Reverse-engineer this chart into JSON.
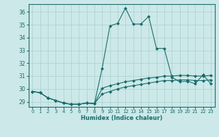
{
  "title": "",
  "xlabel": "Humidex (Indice chaleur)",
  "bg_color": "#cce8e8",
  "line_color": "#1a6b6b",
  "grid_color": "#aacfcf",
  "xlim": [
    -0.5,
    23.5
  ],
  "ylim": [
    28.6,
    36.6
  ],
  "yticks": [
    29,
    30,
    31,
    32,
    33,
    34,
    35,
    36
  ],
  "xticks": [
    0,
    1,
    2,
    3,
    4,
    5,
    6,
    7,
    8,
    9,
    10,
    11,
    12,
    13,
    14,
    15,
    16,
    17,
    18,
    19,
    20,
    21,
    22,
    23
  ],
  "line1_x": [
    0,
    1,
    2,
    3,
    4,
    5,
    6,
    7,
    8,
    9,
    10,
    11,
    12,
    13,
    14,
    15,
    16,
    17,
    18,
    19,
    20,
    21,
    22,
    23
  ],
  "line1_y": [
    29.8,
    29.7,
    29.3,
    29.1,
    28.9,
    28.8,
    28.8,
    28.9,
    28.85,
    31.6,
    34.9,
    35.1,
    36.3,
    35.05,
    35.05,
    35.65,
    33.15,
    33.15,
    30.9,
    30.55,
    30.6,
    30.4,
    31.1,
    30.4
  ],
  "line2_x": [
    0,
    1,
    2,
    3,
    4,
    5,
    6,
    7,
    8,
    9,
    10,
    11,
    12,
    13,
    14,
    15,
    16,
    17,
    18,
    19,
    20,
    21,
    22,
    23
  ],
  "line2_y": [
    29.8,
    29.7,
    29.3,
    29.1,
    28.9,
    28.8,
    28.8,
    28.9,
    28.85,
    30.05,
    30.25,
    30.4,
    30.55,
    30.65,
    30.75,
    30.85,
    30.9,
    31.0,
    31.0,
    31.05,
    31.05,
    31.0,
    31.0,
    31.05
  ],
  "line3_x": [
    0,
    1,
    2,
    3,
    4,
    5,
    6,
    7,
    8,
    9,
    10,
    11,
    12,
    13,
    14,
    15,
    16,
    17,
    18,
    19,
    20,
    21,
    22,
    23
  ],
  "line3_y": [
    29.8,
    29.7,
    29.3,
    29.1,
    28.9,
    28.8,
    28.8,
    28.9,
    28.85,
    29.6,
    29.8,
    30.0,
    30.15,
    30.25,
    30.35,
    30.45,
    30.55,
    30.65,
    30.65,
    30.7,
    30.7,
    30.65,
    30.65,
    30.7
  ]
}
